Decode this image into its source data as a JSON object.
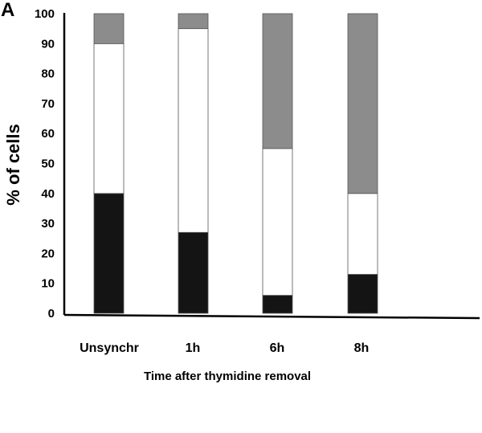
{
  "chart_data": {
    "type": "bar",
    "stacked": true,
    "panel_label": "A",
    "title": "",
    "xlabel": "Time after thymidine removal",
    "ylabel": "% of cells",
    "ylim": [
      0,
      100
    ],
    "yticks": [
      "0",
      "10",
      "20",
      "30",
      "40",
      "50",
      "60",
      "70",
      "80",
      "90",
      "100"
    ],
    "categories": [
      "Unsynchr",
      "1h",
      "6h",
      "8h"
    ],
    "series": [
      {
        "color": "#141414",
        "values": [
          40,
          27,
          6,
          13
        ]
      },
      {
        "color": "#ffffff",
        "values": [
          50,
          68,
          49,
          27
        ]
      },
      {
        "color": "#8c8c8c",
        "values": [
          10,
          5,
          45,
          60
        ]
      }
    ],
    "grid": false,
    "legend": "none"
  }
}
